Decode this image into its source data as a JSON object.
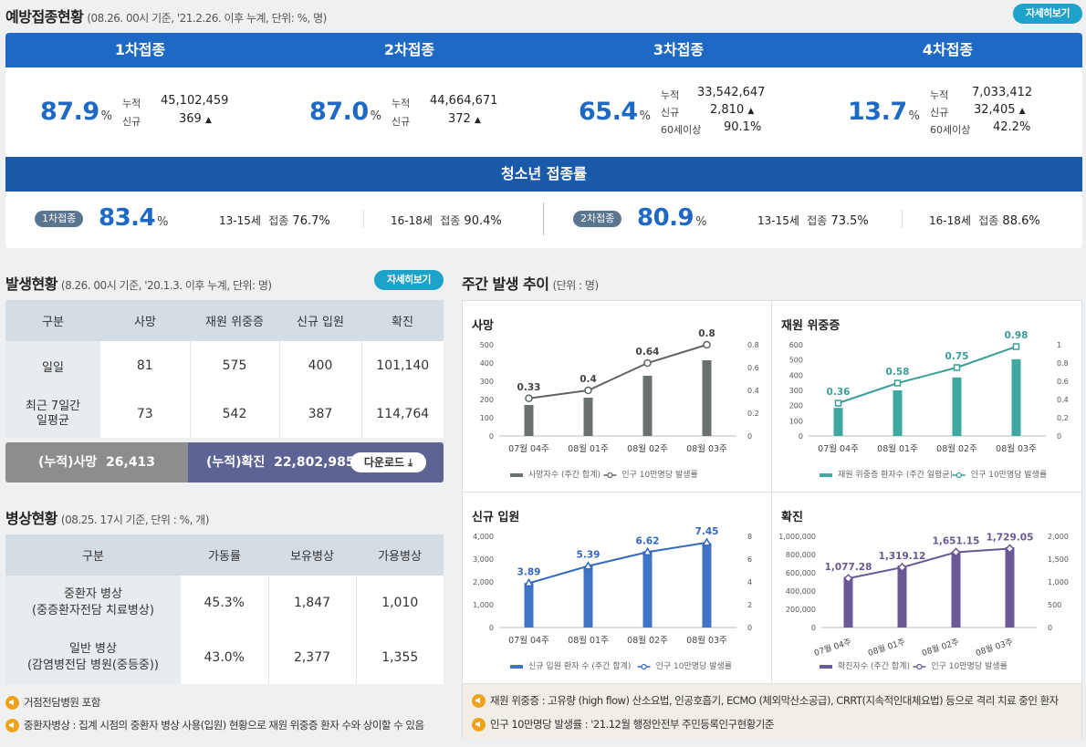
{
  "vax": {
    "title": "예방접종현황",
    "sub": "(08.26. 00시 기준, '21.2.26. 이후 누계, 단위: %, 명)",
    "detail": "자세히보기",
    "doses": [
      {
        "head": "1차접종",
        "rate": "87.9",
        "unit": "%",
        "rows": [
          {
            "k": "누적",
            "v": "45,102,459"
          },
          {
            "k": "신규",
            "v": "369"
          }
        ]
      },
      {
        "head": "2차접종",
        "rate": "87.0",
        "unit": "%",
        "rows": [
          {
            "k": "누적",
            "v": "44,664,671"
          },
          {
            "k": "신규",
            "v": "372"
          }
        ]
      },
      {
        "head": "3차접종",
        "rate": "65.4",
        "unit": "%",
        "rows": [
          {
            "k": "누적",
            "v": "33,542,647"
          },
          {
            "k": "신규",
            "v": "2,810"
          },
          {
            "k": "60세이상",
            "v": "90.1%"
          }
        ]
      },
      {
        "head": "4차접종",
        "rate": "13.7",
        "unit": "%",
        "rows": [
          {
            "k": "누적",
            "v": "7,033,412"
          },
          {
            "k": "신규",
            "v": "32,405"
          },
          {
            "k": "60세이상",
            "v": "42.2%"
          }
        ]
      }
    ],
    "teen": {
      "head": "청소년 접종률",
      "d1": {
        "badge": "1차접종",
        "rate": "83.4",
        "unit": "%",
        "a_age": "13-15세",
        "a_k": "접종",
        "a_v": "76.7%",
        "b_age": "16-18세",
        "b_k": "접종",
        "b_v": "90.4%"
      },
      "d2": {
        "badge": "2차접종",
        "rate": "80.9",
        "unit": "%",
        "a_age": "13-15세",
        "a_k": "접종",
        "a_v": "73.5%",
        "b_age": "16-18세",
        "b_k": "접종",
        "b_v": "88.6%"
      }
    }
  },
  "occ": {
    "title": "발생현황",
    "sub": "(8.26. 00시 기준, '20.1.3. 이후 누계, 단위: 명)",
    "detail": "자세히보기",
    "cols": [
      "구분",
      "사망",
      "재원 위중증",
      "신규 입원",
      "확진"
    ],
    "rows": [
      [
        "일일",
        "81",
        "575",
        "400",
        "101,140"
      ],
      [
        "최근 7일간\n일평균",
        "73",
        "542",
        "387",
        "114,764"
      ]
    ],
    "cum_death_k": "(누적)사망",
    "cum_death_v": "26,413",
    "cum_conf_k": "(누적)확진",
    "cum_conf_v": "22,802,985",
    "download": "다운로드"
  },
  "beds": {
    "title": "병상현황",
    "sub": "(08.25. 17시 기준, 단위 : %, 개)",
    "cols": [
      "구분",
      "가동률",
      "보유병상",
      "가용병상"
    ],
    "rows": [
      [
        "중환자 병상\n(중증환자전담 치료병상)",
        "45.3%",
        "1,847",
        "1,010"
      ],
      [
        "일반 병상\n(감염병전담 병원(중등중))",
        "43.0%",
        "2,377",
        "1,355"
      ]
    ],
    "notes": [
      "거점전담병원 포함",
      "중환자병상 : 집계 시점의 중환자 병상 사용(입원) 현황으로 재원 위중증 환자 수와 상이할 수 있음"
    ]
  },
  "weekly": {
    "title": "주간 발생 추이",
    "sub": "(단위 : 명)",
    "notes": [
      "재원 위중증 : 고유량 (high flow) 산소요법, 인공호흡기, ECMO (체외막산소공급), CRRT(지속적인대체요법) 등으로 격리 치료 중인 환자",
      "인구 10만명당 발생률 : '21.12월 행정안전부 주민등록인구현황기준"
    ]
  },
  "chart_data": [
    {
      "type": "bar",
      "title": "사망",
      "categories": [
        "07월 04주",
        "08월 01주",
        "08월 02주",
        "08월 03주"
      ],
      "series": [
        {
          "name": "사망자수 (주간 합계)",
          "values": [
            170,
            210,
            330,
            415
          ]
        },
        {
          "name": "인구 10만명당 발생률",
          "values": [
            0.33,
            0.4,
            0.64,
            0.8
          ]
        }
      ],
      "ylim": [
        0,
        500
      ],
      "y2lim": [
        0,
        0.8
      ],
      "yticks": [
        "0",
        "100",
        "200",
        "300",
        "400",
        "500"
      ],
      "y2ticks": [
        "0",
        "0.2",
        "0.4",
        "0.6",
        "0.8"
      ],
      "labels": [
        "0.33",
        "0.4",
        "0.64",
        "0.8"
      ],
      "bar_color": "#6b716f",
      "line_color": "#5e6462"
    },
    {
      "type": "bar",
      "title": "재원 위중증",
      "categories": [
        "07월 04주",
        "08월 01주",
        "08월 02주",
        "08월 03주"
      ],
      "series": [
        {
          "name": "재원 위중증 환자수 (주간 일평균)",
          "values": [
            185,
            300,
            385,
            505
          ]
        },
        {
          "name": "인구 10만명당 발생률",
          "values": [
            0.36,
            0.58,
            0.75,
            0.98
          ]
        }
      ],
      "ylim": [
        0,
        600
      ],
      "y2lim": [
        0,
        1
      ],
      "yticks": [
        "0",
        "100",
        "200",
        "300",
        "400",
        "500",
        "600"
      ],
      "y2ticks": [
        "0",
        "0.2",
        "0.4",
        "0.6",
        "0.8",
        "1"
      ],
      "labels": [
        "0.36",
        "0.58",
        "0.75",
        "0.98"
      ],
      "bar_color": "#3fa8a0",
      "line_color": "#3a9e97"
    },
    {
      "type": "bar",
      "title": "신규 입원",
      "categories": [
        "07월 04주",
        "08월 01주",
        "08월 02주",
        "08월 03주"
      ],
      "series": [
        {
          "name": "신규 입원 환자 수 (주간 합계)",
          "values": [
            1950,
            2700,
            3350,
            3700
          ]
        },
        {
          "name": "인구 10만명당 발생률",
          "values": [
            3.89,
            5.39,
            6.62,
            7.45
          ]
        }
      ],
      "ylim": [
        0,
        4000
      ],
      "y2lim": [
        0,
        8
      ],
      "yticks": [
        "0",
        "1,000",
        "2,000",
        "3,000",
        "4,000"
      ],
      "y2ticks": [
        "0",
        "2",
        "4",
        "6",
        "8"
      ],
      "labels": [
        "3.89",
        "5.39",
        "6.62",
        "7.45"
      ],
      "bar_color": "#3f74c7",
      "line_color": "#3567c1"
    },
    {
      "type": "bar",
      "title": "확진",
      "categories": [
        "07월 04주",
        "08월 01주",
        "08월 02주",
        "08월 03주"
      ],
      "series": [
        {
          "name": "확진자수 (주간 합계)",
          "values": [
            555000,
            680000,
            830000,
            880000
          ]
        },
        {
          "name": "인구 10만명당 발생률",
          "values": [
            1077.28,
            1319.12,
            1651.15,
            1729.05
          ]
        }
      ],
      "ylim": [
        0,
        1000000
      ],
      "y2lim": [
        0,
        2000
      ],
      "yticks": [
        "0",
        "200,000",
        "400,000",
        "600,000",
        "800,000",
        "1,000,000"
      ],
      "y2ticks": [
        "0",
        "500",
        "1,000",
        "1,500",
        "2,000"
      ],
      "labels": [
        "1,077.28",
        "1,319.12",
        "1,651.15",
        "1,729.05"
      ],
      "bar_color": "#6b5896",
      "line_color": "#6a5895",
      "rotate": true
    }
  ],
  "colors": {
    "primary": "#1e69c5",
    "teen": "#1a5aa8",
    "accent_btn": "#1ea2c9",
    "cum_death": "#8d8d8d",
    "cum_conf": "#5d6494"
  }
}
